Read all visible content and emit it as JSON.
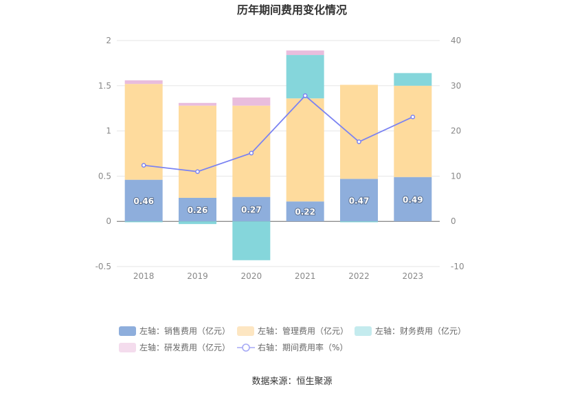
{
  "chart_data": {
    "type": "bar",
    "title": "历年期间费用变化情况",
    "categories": [
      "2018",
      "2019",
      "2020",
      "2021",
      "2022",
      "2023"
    ],
    "stacked": true,
    "y_left": {
      "ylim": [
        -0.5,
        2
      ],
      "ticks": [
        "-0.5",
        "0",
        "0.5",
        "1",
        "1.5",
        "2"
      ]
    },
    "y_right": {
      "ylim": [
        -10,
        40
      ],
      "ticks": [
        "-10",
        "0",
        "10",
        "20",
        "30",
        "40"
      ]
    },
    "series": [
      {
        "name": "左轴：销售费用（亿元）",
        "type": "bar",
        "axis": "left",
        "color": "#8eaedc",
        "values": [
          0.46,
          0.26,
          0.27,
          0.22,
          0.47,
          0.49
        ],
        "labels": [
          "0.46",
          "0.26",
          "0.27",
          "0.22",
          "0.47",
          "0.49"
        ]
      },
      {
        "name": "左轴：管理费用（亿元）",
        "type": "bar",
        "axis": "left",
        "color": "#fedb9d",
        "values": [
          1.06,
          1.02,
          1.01,
          1.14,
          1.04,
          1.01
        ]
      },
      {
        "name": "左轴：财务费用（亿元）",
        "type": "bar",
        "axis": "left",
        "color": "#85d6db",
        "values": [
          -0.01,
          -0.03,
          -0.43,
          0.48,
          -0.01,
          0.14
        ]
      },
      {
        "name": "左轴：研发费用（亿元）",
        "type": "bar",
        "axis": "left",
        "color": "#e9bddd",
        "values": [
          0.04,
          0.03,
          0.09,
          0.05,
          0.0,
          0.0
        ]
      },
      {
        "name": "右轴：期间费用率（%）",
        "type": "line",
        "axis": "right",
        "color": "#7b83f2",
        "values": [
          12.4,
          11.0,
          15.1,
          27.8,
          17.6,
          23.1
        ]
      }
    ],
    "grid": true,
    "legend_position": "bottom"
  },
  "source": "数据来源：恒生聚源"
}
